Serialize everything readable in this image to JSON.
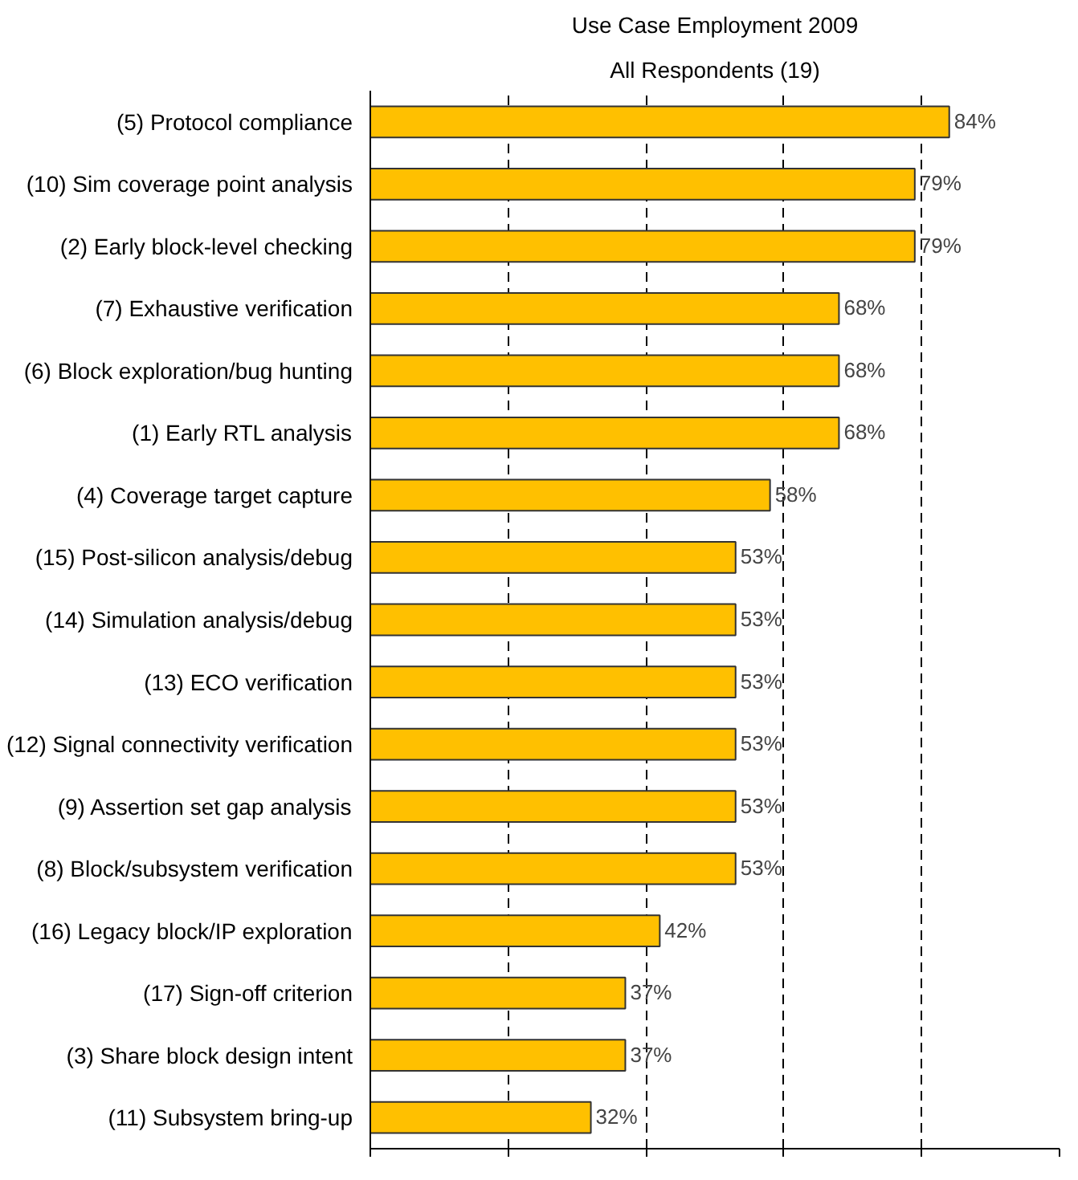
{
  "chart_data": {
    "type": "bar",
    "orientation": "horizontal",
    "title": "Use Case Employment 2009",
    "subtitle": "All Respondents (19)",
    "categories": [
      "(5) Protocol compliance",
      "(10) Sim coverage point analysis",
      "(2) Early block-level checking",
      "(7) Exhaustive verification",
      "(6) Block exploration/bug hunting",
      "(1) Early RTL analysis",
      "(4) Coverage target capture",
      "(15) Post-silicon analysis/debug",
      "(14) Simulation analysis/debug",
      "(13) ECO verification",
      "(12) Signal connectivity verification",
      "(9) Assertion set gap analysis",
      "(8) Block/subsystem verification",
      "(16) Legacy block/IP exploration",
      "(17) Sign-off criterion",
      "(3) Share block design intent",
      "(11) Subsystem bring-up"
    ],
    "values": [
      84,
      79,
      79,
      68,
      68,
      68,
      58,
      53,
      53,
      53,
      53,
      53,
      53,
      42,
      37,
      37,
      32
    ],
    "value_labels": [
      "84%",
      "79%",
      "79%",
      "68%",
      "68%",
      "68%",
      "58%",
      "53%",
      "53%",
      "53%",
      "53%",
      "53%",
      "53%",
      "42%",
      "37%",
      "37%",
      "32%"
    ],
    "color": "#ffc000",
    "xlim": [
      0,
      100
    ],
    "xticks": [
      {
        "value": 0,
        "label": null
      },
      {
        "value": 20,
        "label": null
      },
      {
        "value": 40,
        "label": null
      },
      {
        "value": 60,
        "label": null
      },
      {
        "value": 80,
        "label": null
      },
      {
        "value": 100,
        "label": null
      }
    ],
    "tick_labels": "y",
    "grid": "x"
  }
}
